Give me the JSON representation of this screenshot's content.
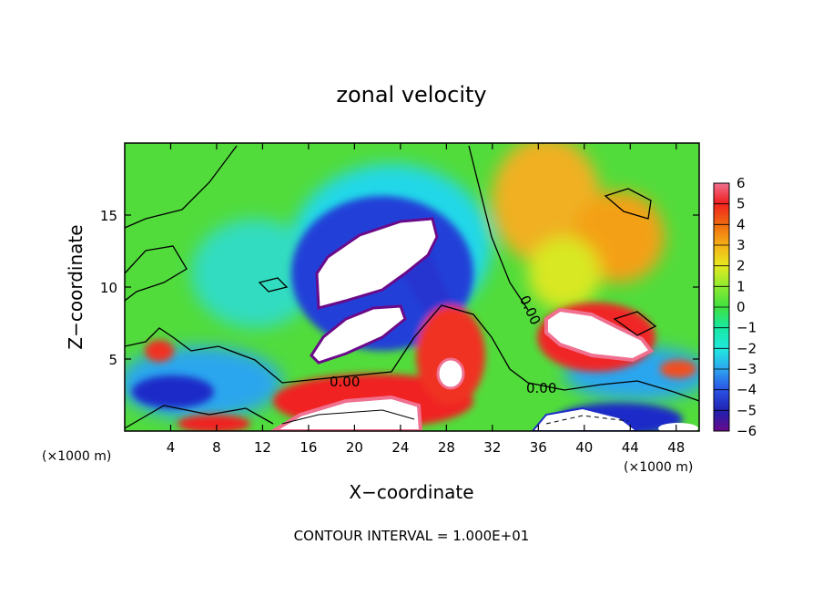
{
  "chart_data": {
    "type": "heatmap",
    "title": "zonal velocity",
    "xlabel": "X−coordinate",
    "ylabel": "Z−coordinate",
    "x_unit_label": "(×1000 m)",
    "y_unit_label": "(×1000 m)",
    "xlim": [
      0,
      50
    ],
    "ylim": [
      0,
      20
    ],
    "x_ticks": [
      4,
      8,
      12,
      16,
      20,
      24,
      28,
      32,
      36,
      40,
      44,
      48
    ],
    "y_ticks": [
      5,
      10,
      15
    ],
    "colorbar": {
      "min": -6,
      "max": 6,
      "ticks": [
        6,
        5,
        4,
        3,
        2,
        1,
        0,
        -1,
        -2,
        -3,
        -4,
        -5,
        -6
      ],
      "tick_labels": [
        "6",
        "5",
        "4",
        "3",
        "2",
        "1",
        "0",
        "−1",
        "−2",
        "−3",
        "−4",
        "−5",
        "−6"
      ],
      "colors": [
        "#6a0a8a",
        "#2020b0",
        "#2b55e8",
        "#2da6ee",
        "#20e8e0",
        "#18e8a0",
        "#40e040",
        "#8aea30",
        "#e8e820",
        "#f4b018",
        "#f06e10",
        "#f02020",
        "#f07090"
      ]
    },
    "contour_labels": [
      {
        "text": "0.00",
        "x": 19.7,
        "z": 3.3
      },
      {
        "text": "0.00",
        "x": 36.0,
        "z": 3.0
      },
      {
        "text": "0.00",
        "x": 34.5,
        "z": 8.0
      }
    ],
    "footnote": "CONTOUR INTERVAL = 1.000E+01"
  }
}
